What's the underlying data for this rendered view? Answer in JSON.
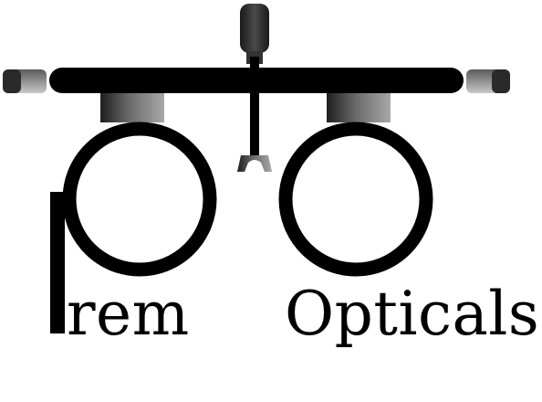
{
  "brand": {
    "word_left": "rem",
    "word_right": "Opticals",
    "color_ink": "#000000",
    "color_metal_dark": "#2b2b2b",
    "color_metal_light": "#8a8a8a"
  }
}
